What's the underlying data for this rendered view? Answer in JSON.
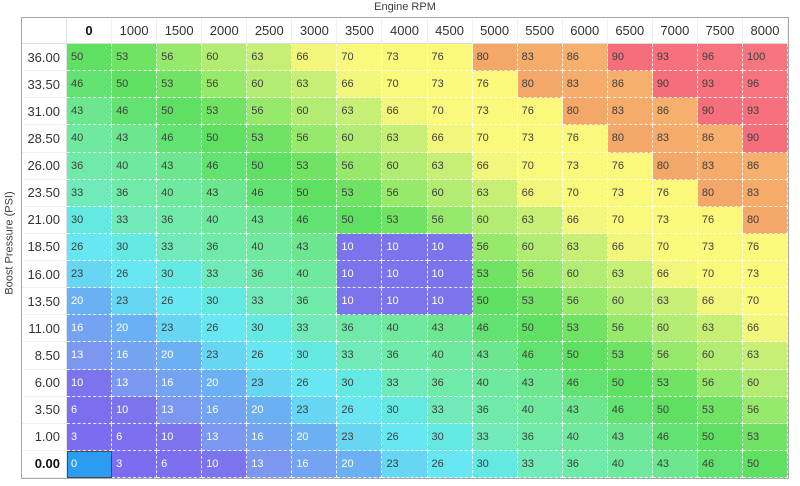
{
  "title": "Engine RPM",
  "y_axis_label": "Boost Pressure (PSI)",
  "columns": [
    "0",
    "1000",
    "1500",
    "2000",
    "2500",
    "3000",
    "3500",
    "4000",
    "4500",
    "5000",
    "5500",
    "6000",
    "6500",
    "7000",
    "7500",
    "8000"
  ],
  "rows": [
    {
      "label": "36.00",
      "values": [
        50,
        53,
        56,
        60,
        63,
        66,
        70,
        73,
        76,
        80,
        83,
        86,
        90,
        93,
        96,
        100
      ]
    },
    {
      "label": "33.50",
      "values": [
        46,
        50,
        53,
        56,
        60,
        63,
        66,
        70,
        73,
        76,
        80,
        83,
        86,
        90,
        93,
        96
      ]
    },
    {
      "label": "31.00",
      "values": [
        43,
        46,
        50,
        53,
        56,
        60,
        63,
        66,
        70,
        73,
        76,
        80,
        83,
        86,
        90,
        93
      ]
    },
    {
      "label": "28.50",
      "values": [
        40,
        43,
        46,
        50,
        53,
        56,
        60,
        63,
        66,
        70,
        73,
        76,
        80,
        83,
        86,
        90
      ]
    },
    {
      "label": "26.00",
      "values": [
        36,
        40,
        43,
        46,
        50,
        53,
        56,
        60,
        63,
        66,
        70,
        73,
        76,
        80,
        83,
        86
      ]
    },
    {
      "label": "23.50",
      "values": [
        33,
        36,
        40,
        43,
        46,
        50,
        53,
        56,
        60,
        63,
        66,
        70,
        73,
        76,
        80,
        83
      ]
    },
    {
      "label": "21.00",
      "values": [
        30,
        33,
        36,
        40,
        43,
        46,
        50,
        53,
        56,
        60,
        63,
        66,
        70,
        73,
        76,
        80
      ]
    },
    {
      "label": "18.50",
      "values": [
        26,
        30,
        33,
        36,
        40,
        43,
        10,
        10,
        10,
        56,
        60,
        63,
        66,
        70,
        73,
        76
      ]
    },
    {
      "label": "16.00",
      "values": [
        23,
        26,
        30,
        33,
        36,
        40,
        10,
        10,
        10,
        53,
        56,
        60,
        63,
        66,
        70,
        73
      ]
    },
    {
      "label": "13.50",
      "values": [
        20,
        23,
        26,
        30,
        33,
        36,
        10,
        10,
        10,
        50,
        53,
        56,
        60,
        63,
        66,
        70
      ]
    },
    {
      "label": "11.00",
      "values": [
        16,
        20,
        23,
        26,
        30,
        33,
        36,
        40,
        43,
        46,
        50,
        53,
        56,
        60,
        63,
        66
      ]
    },
    {
      "label": "8.50",
      "values": [
        13,
        16,
        20,
        23,
        26,
        30,
        33,
        36,
        40,
        43,
        46,
        50,
        53,
        56,
        60,
        63
      ]
    },
    {
      "label": "6.00",
      "values": [
        10,
        13,
        16,
        20,
        23,
        26,
        30,
        33,
        36,
        40,
        43,
        46,
        50,
        53,
        56,
        60
      ]
    },
    {
      "label": "3.50",
      "values": [
        6,
        10,
        13,
        16,
        20,
        23,
        26,
        30,
        33,
        36,
        40,
        43,
        46,
        50,
        53,
        56
      ]
    },
    {
      "label": "1.00",
      "values": [
        3,
        6,
        10,
        13,
        16,
        20,
        23,
        26,
        30,
        33,
        36,
        40,
        43,
        46,
        50,
        53
      ]
    },
    {
      "label": "0.00",
      "values": [
        0,
        3,
        6,
        10,
        13,
        16,
        20,
        23,
        26,
        30,
        33,
        36,
        40,
        43,
        46,
        50
      ]
    }
  ],
  "selected": {
    "row": 15,
    "col": 0,
    "row_label": "0.00",
    "col_label": "0",
    "value": 0
  },
  "value_colors": {
    "0": "#2b9cf2",
    "3": "#7b6cf0",
    "6": "#7b6ff0",
    "10": "#7c74ec",
    "13": "#7b97f0",
    "16": "#74a3f2",
    "20": "#6cb0f4",
    "23": "#66d6f2",
    "26": "#68e6f1",
    "30": "#63e9e2",
    "33": "#6feab8",
    "36": "#70eaa8",
    "40": "#6ee99d",
    "43": "#6ce78f",
    "46": "#62e371",
    "50": "#5fe063",
    "53": "#70e365",
    "56": "#97e96c",
    "60": "#b2ec72",
    "63": "#c8ef75",
    "66": "#f2f67a",
    "70": "#f9f97c",
    "73": "#fbf97c",
    "76": "#fbf87b",
    "80": "#f3a768",
    "83": "#f5ab6a",
    "86": "#f6af6d",
    "90": "#f56e7b",
    "93": "#f6717d",
    "96": "#f7737e",
    "100": "#f7757f"
  },
  "colors": {
    "selected_border": "#4a4a4a",
    "table_border": "#a8a8a8",
    "grid_dash": "#ffffff",
    "text_dark": "#3f3f3f",
    "text_light": "#ffffff",
    "header_text": "#333333"
  },
  "text_light_threshold": 20
}
